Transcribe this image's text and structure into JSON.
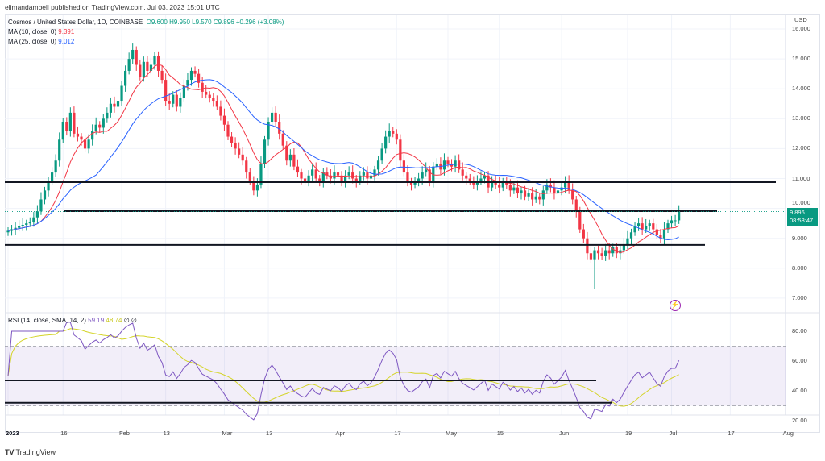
{
  "header": {
    "published": "elimandambell published on TradingView.com, Jul 03, 2023 15:01 UTC"
  },
  "legend": {
    "symbol": "Cosmos / United States Dollar, 1D, COINBASE",
    "open": "O9.600",
    "high": "H9.950",
    "low": "L9.570",
    "close": "C9.896",
    "change": "+0.296 (+3.08%)",
    "ma10_label": "MA (10, close, 0)",
    "ma10_value": "9.391",
    "ma25_label": "MA (25, close, 0)",
    "ma25_value": "9.012"
  },
  "rsi_legend": {
    "label": "RSI (14, close, SMA, 14, 2)",
    "rsi": "59.19",
    "sma": "48.74",
    "extra1": "∅",
    "extra2": "∅"
  },
  "price_axis": {
    "currency": "USD",
    "labels": [
      "16.000",
      "15.000",
      "14.000",
      "13.000",
      "12.000",
      "11.000",
      "10.000",
      "9.000",
      "8.000",
      "7.000"
    ],
    "last_price": "9.896",
    "countdown": "08:58:47"
  },
  "rsi_axis": {
    "labels": [
      "80.00",
      "60.00",
      "40.00",
      "20.00"
    ]
  },
  "time_axis": {
    "labels": [
      "2023",
      "16",
      "Feb",
      "13",
      "Mar",
      "13",
      "Apr",
      "17",
      "May",
      "15",
      "Jun",
      "19",
      "Jul",
      "17",
      "Aug"
    ],
    "days": [
      0,
      15,
      31,
      43,
      59,
      71,
      90,
      106,
      120,
      134,
      151,
      169,
      181,
      197,
      212
    ]
  },
  "footer": {
    "brand": "TradingView"
  },
  "colors": {
    "up": "#089981",
    "down": "#f23645",
    "ma10": "#f23645",
    "ma25": "#2962ff",
    "rsi": "#7e57c2",
    "rsi_sma": "#d4d42a"
  },
  "chart_data": {
    "type": "candlestick",
    "title": "Cosmos / United States Dollar, 1D, COINBASE",
    "start_date": "2023-01-01",
    "ylim": [
      7,
      16.3
    ],
    "rsi_ylim": [
      17,
      87
    ],
    "rsi_bands": [
      70,
      50,
      30
    ],
    "closes": [
      9.25,
      9.3,
      9.35,
      9.4,
      9.45,
      9.5,
      9.55,
      9.7,
      9.9,
      10.3,
      10.6,
      10.9,
      11.2,
      11.6,
      12.3,
      12.9,
      12.6,
      13.2,
      12.5,
      12.4,
      12.3,
      12.0,
      12.3,
      12.6,
      12.8,
      12.7,
      13.0,
      13.2,
      13.5,
      13.4,
      13.6,
      14.1,
      14.6,
      15.0,
      15.3,
      14.8,
      14.4,
      14.9,
      14.6,
      14.8,
      15.1,
      14.6,
      14.3,
      13.6,
      13.5,
      13.8,
      13.4,
      13.7,
      14.1,
      14.3,
      14.6,
      14.5,
      14.2,
      13.9,
      13.8,
      13.7,
      13.6,
      13.4,
      13.1,
      12.8,
      12.4,
      12.2,
      12.0,
      11.8,
      11.6,
      11.2,
      10.9,
      10.6,
      10.8,
      11.5,
      12.3,
      12.9,
      13.2,
      12.9,
      12.5,
      12.1,
      11.6,
      11.8,
      11.4,
      11.2,
      11.0,
      10.9,
      11.1,
      11.3,
      11.0,
      10.9,
      11.2,
      11.1,
      11.0,
      11.2,
      11.1,
      10.9,
      11.1,
      11.2,
      11.0,
      10.9,
      11.1,
      11.2,
      11.0,
      11.1,
      11.3,
      11.6,
      12.0,
      12.4,
      12.6,
      12.5,
      12.3,
      11.6,
      11.2,
      10.9,
      10.8,
      10.9,
      11.0,
      11.2,
      11.3,
      10.9,
      11.4,
      11.5,
      11.3,
      11.6,
      11.5,
      11.4,
      11.6,
      11.3,
      11.1,
      11.0,
      10.9,
      10.8,
      10.9,
      11.0,
      11.1,
      10.7,
      10.9,
      10.8,
      10.7,
      10.9,
      10.8,
      10.6,
      10.7,
      10.5,
      10.6,
      10.4,
      10.5,
      10.3,
      10.4,
      10.3,
      10.6,
      10.8,
      10.7,
      10.5,
      10.6,
      10.7,
      10.9,
      10.6,
      10.3,
      9.9,
      9.3,
      9.0,
      8.5,
      8.3,
      8.6,
      8.5,
      8.4,
      8.6,
      8.5,
      8.7,
      8.5,
      8.6,
      8.8,
      9.0,
      9.2,
      9.4,
      9.5,
      9.3,
      9.4,
      9.5,
      9.3,
      9.1,
      9.0,
      9.3,
      9.5,
      9.6,
      9.6,
      9.896
    ],
    "ma_periods": [
      10,
      25
    ],
    "horizontal_levels": [
      10.88,
      9.91,
      8.78
    ],
    "rsi_levels": [
      47,
      32
    ]
  }
}
